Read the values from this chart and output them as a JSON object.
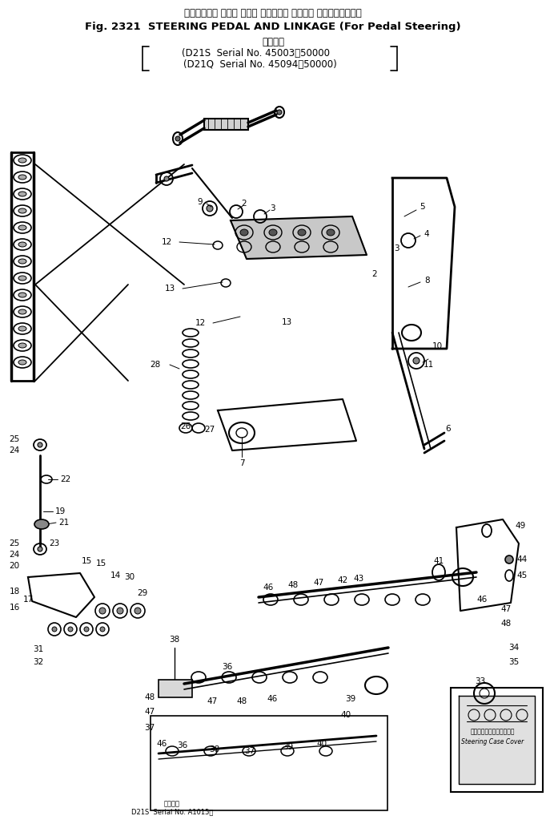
{
  "title_line1": "ステアリング ペダル および リンケージ （ペダル ステアリング用）",
  "title_line2": "Fig. 2321  STEERING PEDAL AND LINKAGE (For Pedal Steering)",
  "subtitle": "適用号機",
  "serial1": "D21S  Serial No. 45003～50000",
  "serial2": "(D21Q  Serial No. 45094～50000)",
  "bottom_serial1": "適用号機",
  "bottom_serial2": "D21S  Serial No. A1015～",
  "steering_case_cover_jp": "ステアリングケースカバー",
  "steering_case_cover_en": "Steering Case Cover",
  "bg_color": "#ffffff",
  "fig_width": 6.82,
  "fig_height": 10.23,
  "dpi": 100
}
